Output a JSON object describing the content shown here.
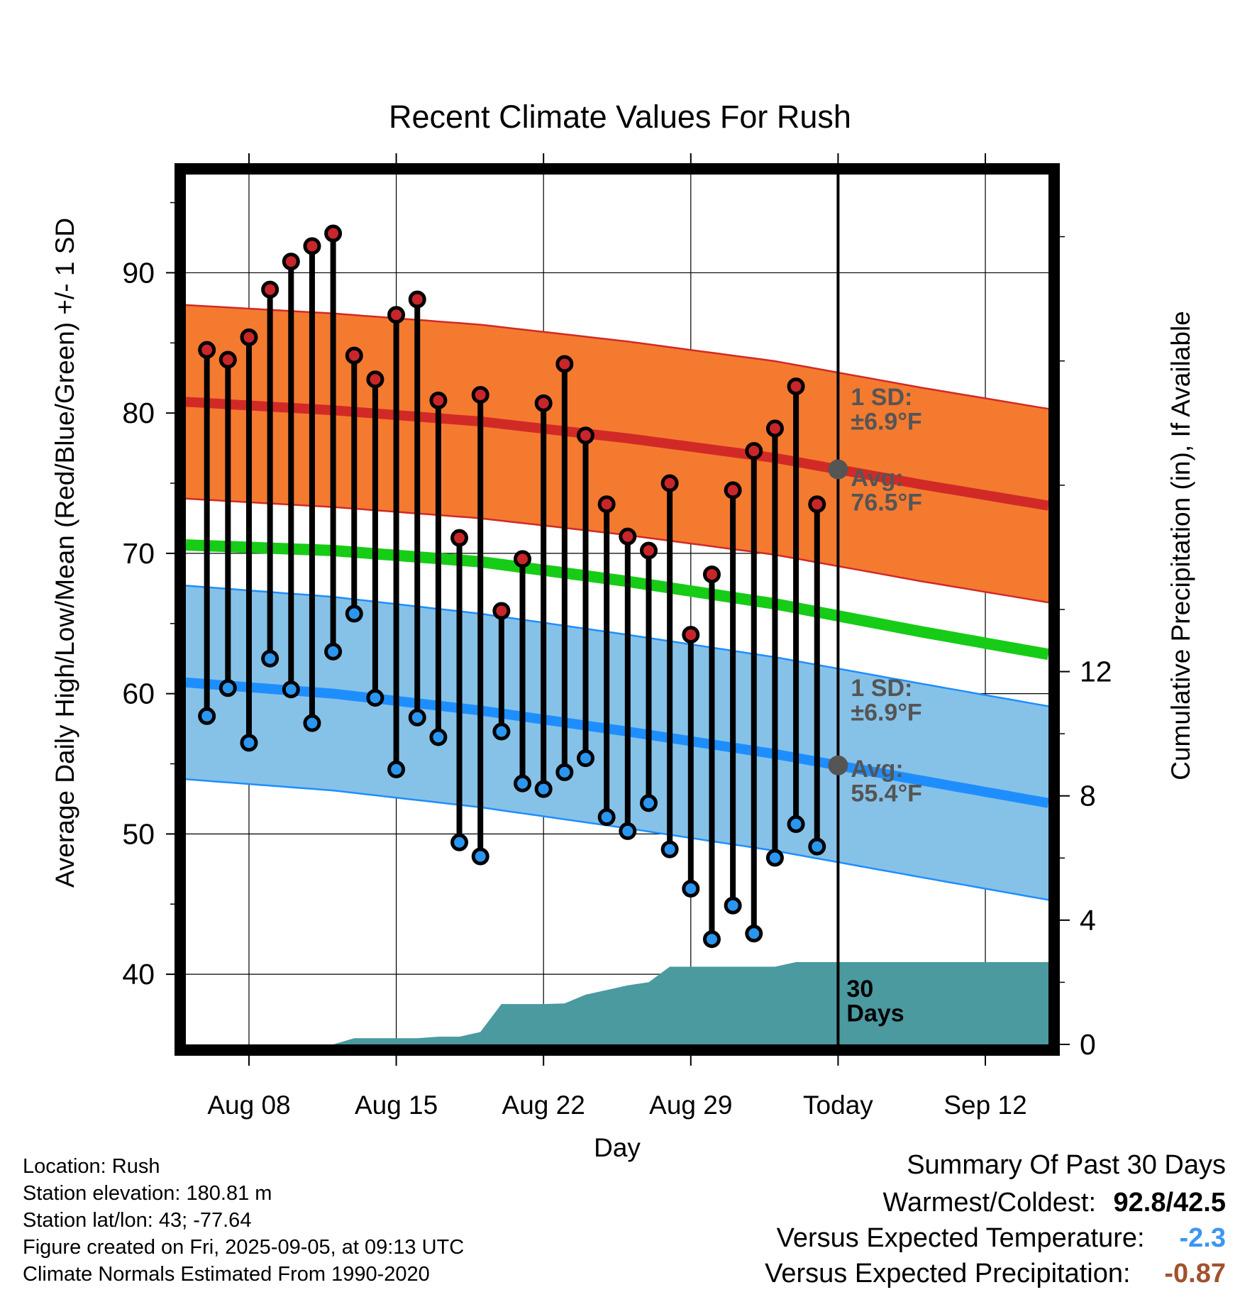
{
  "chart_data": {
    "type": "line",
    "title": "Recent Climate Values For Rush",
    "xlabel": "Day",
    "ylabel": "Average Daily High/Low/Mean (Red/Blue/Green) +/- 1 SD",
    "y2label": "Cumulative Precipitation (in), If Available",
    "xlim": [
      "2025-08-05",
      "2025-09-15"
    ],
    "ylim": [
      35,
      97
    ],
    "y2lim": [
      0,
      28
    ],
    "x_ticks": [
      {
        "date": "2025-08-08",
        "label": "Aug 08"
      },
      {
        "date": "2025-08-15",
        "label": "Aug 15"
      },
      {
        "date": "2025-08-22",
        "label": "Aug 22"
      },
      {
        "date": "2025-08-29",
        "label": "Aug 29"
      },
      {
        "date": "2025-09-05",
        "label": "Today"
      },
      {
        "date": "2025-09-12",
        "label": "Sep 12"
      }
    ],
    "y_ticks": [
      40,
      50,
      60,
      70,
      80,
      90
    ],
    "y2_ticks": [
      0,
      4,
      8,
      12
    ],
    "grid": true,
    "today": "2025-09-05",
    "daily": {
      "dates": [
        "2025-08-06",
        "2025-08-07",
        "2025-08-08",
        "2025-08-09",
        "2025-08-10",
        "2025-08-11",
        "2025-08-12",
        "2025-08-13",
        "2025-08-14",
        "2025-08-15",
        "2025-08-16",
        "2025-08-17",
        "2025-08-18",
        "2025-08-19",
        "2025-08-20",
        "2025-08-21",
        "2025-08-22",
        "2025-08-23",
        "2025-08-24",
        "2025-08-25",
        "2025-08-26",
        "2025-08-27",
        "2025-08-28",
        "2025-08-29",
        "2025-08-30",
        "2025-08-31",
        "2025-09-01",
        "2025-09-02",
        "2025-09-03",
        "2025-09-04"
      ],
      "highs": [
        84.5,
        83.8,
        85.4,
        88.8,
        90.8,
        91.9,
        92.8,
        84.1,
        82.4,
        87.0,
        88.1,
        80.9,
        71.1,
        81.3,
        65.9,
        69.6,
        80.7,
        83.5,
        78.4,
        73.5,
        71.2,
        70.2,
        75.0,
        64.2,
        68.5,
        74.5,
        77.3,
        78.9,
        81.9,
        73.5
      ],
      "lows": [
        58.4,
        60.4,
        56.5,
        62.5,
        60.3,
        57.9,
        63.0,
        65.7,
        59.7,
        54.6,
        58.3,
        56.9,
        49.4,
        48.4,
        57.3,
        53.6,
        53.2,
        54.4,
        55.4,
        51.2,
        50.2,
        52.2,
        48.9,
        46.1,
        42.5,
        44.9,
        42.9,
        48.3,
        50.7,
        49.1
      ]
    },
    "normals": {
      "dates": [
        "2025-08-05",
        "2025-08-12",
        "2025-08-19",
        "2025-08-26",
        "2025-09-02",
        "2025-09-09",
        "2025-09-15"
      ],
      "avg_high": [
        80.8,
        80.2,
        79.4,
        78.2,
        76.8,
        74.9,
        73.4
      ],
      "avg_low": [
        60.8,
        60.0,
        58.8,
        57.3,
        55.7,
        53.8,
        52.2
      ],
      "avg_mean": [
        70.6,
        70.2,
        69.4,
        68.0,
        66.4,
        64.4,
        62.8
      ],
      "sd_band": 6.9
    },
    "precip_cumulative": {
      "dates": [
        "2025-08-05",
        "2025-08-12",
        "2025-08-13",
        "2025-08-14",
        "2025-08-15",
        "2025-08-16",
        "2025-08-17",
        "2025-08-18",
        "2025-08-19",
        "2025-08-20",
        "2025-08-21",
        "2025-08-22",
        "2025-08-23",
        "2025-08-24",
        "2025-08-25",
        "2025-08-26",
        "2025-08-27",
        "2025-08-28",
        "2025-08-29",
        "2025-08-30",
        "2025-08-31",
        "2025-09-01",
        "2025-09-02",
        "2025-09-03",
        "2025-09-04",
        "2025-09-15"
      ],
      "values": [
        0.0,
        0.0,
        0.2,
        0.2,
        0.2,
        0.2,
        0.25,
        0.25,
        0.4,
        1.3,
        1.3,
        1.3,
        1.32,
        1.6,
        1.75,
        1.9,
        2.0,
        2.5,
        2.5,
        2.5,
        2.5,
        2.5,
        2.5,
        2.65,
        2.65,
        2.65
      ]
    },
    "annotations": {
      "high_sd": "1 SD:\n±6.9°F",
      "high_avg": "Avg:\n76.5°F",
      "low_sd": "1 SD:\n±6.9°F",
      "low_avg": "Avg:\n55.4°F",
      "days": "30\nDays"
    },
    "colors": {
      "high_band": "#f47a30",
      "high_line": "#d12a26",
      "low_band": "#86c2e7",
      "low_line": "#1e8eff",
      "mean_line": "#16cc16",
      "precip": "#4a9aa0",
      "high_marker": "#c8262a",
      "low_marker": "#2a96f0",
      "annotation": "#555555"
    }
  },
  "info": {
    "location": "Location: Rush",
    "elevation": "Station elevation: 180.81 m",
    "latlon": "Station lat/lon: 43; -77.64",
    "created": "Figure created on Fri, 2025-09-05, at 09:13 UTC",
    "normals": "Climate Normals Estimated From 1990-2020"
  },
  "summary": {
    "title": "Summary Of Past 30 Days",
    "warmest_label": "Warmest/Coldest:",
    "warmest_value": "92.8/42.5",
    "temp_label": "Versus Expected Temperature:",
    "temp_value": "-2.3",
    "temp_color": "#3a96f0",
    "precip_label": "Versus Expected Precipitation:",
    "precip_value": "-0.87",
    "precip_color": "#a0522d"
  }
}
